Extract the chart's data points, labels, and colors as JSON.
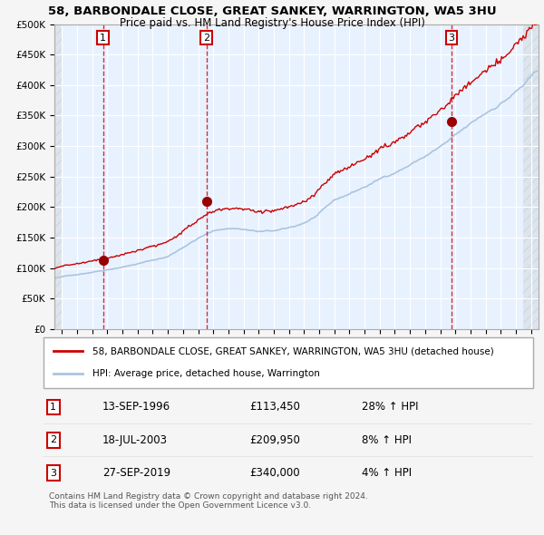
{
  "title_line1": "58, BARBONDALE CLOSE, GREAT SANKEY, WARRINGTON, WA5 3HU",
  "title_line2": "Price paid vs. HM Land Registry's House Price Index (HPI)",
  "hpi_color": "#aac4e0",
  "price_color": "#cc0000",
  "marker_color": "#990000",
  "plot_bg": "#e8f2ff",
  "vline_color": "#cc0000",
  "purchases": [
    {
      "date_num": 1996.71,
      "price": 113450,
      "label": "1",
      "date_str": "13-SEP-1996",
      "hpi_pct": "28%"
    },
    {
      "date_num": 2003.54,
      "price": 209950,
      "label": "2",
      "date_str": "18-JUL-2003",
      "hpi_pct": "8%"
    },
    {
      "date_num": 2019.74,
      "price": 340000,
      "label": "3",
      "date_str": "27-SEP-2019",
      "hpi_pct": "4%"
    }
  ],
  "legend_entries": [
    {
      "label": "58, BARBONDALE CLOSE, GREAT SANKEY, WARRINGTON, WA5 3HU (detached house)",
      "color": "#cc0000"
    },
    {
      "label": "HPI: Average price, detached house, Warrington",
      "color": "#aac4e0"
    }
  ],
  "footer_lines": [
    "Contains HM Land Registry data © Crown copyright and database right 2024.",
    "This data is licensed under the Open Government Licence v3.0."
  ],
  "ylim": [
    0,
    500000
  ],
  "yticks": [
    0,
    50000,
    100000,
    150000,
    200000,
    250000,
    300000,
    350000,
    400000,
    450000,
    500000
  ],
  "xlim_start": 1993.5,
  "xlim_end": 2025.5
}
